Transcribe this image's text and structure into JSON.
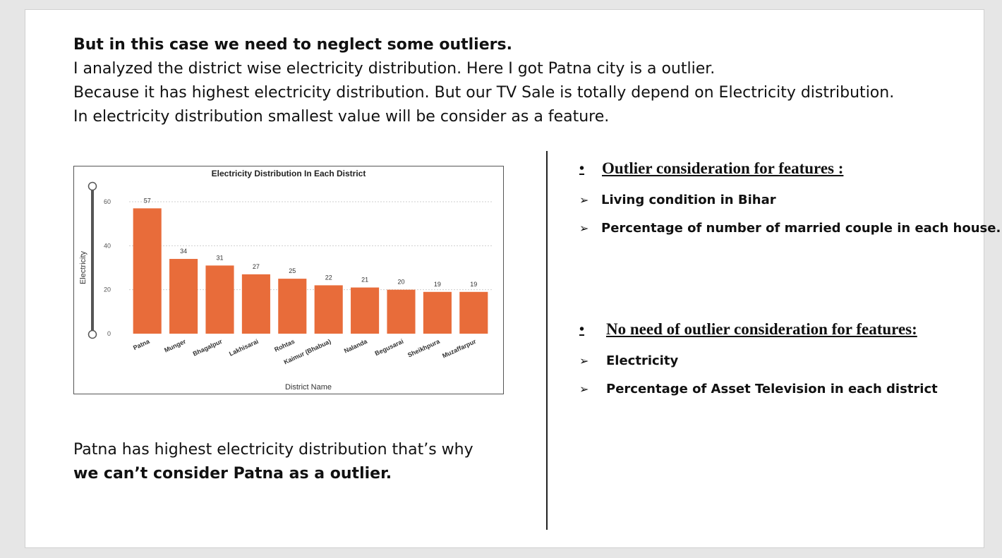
{
  "intro": {
    "heading": "But in this case we need to neglect some outliers.",
    "lines": [
      "I analyzed the district wise electricity distribution. Here I got Patna city is a outlier.",
      "Because it has highest electricity distribution. But our TV Sale is totally depend on Electricity distribution.",
      "In electricity distribution smallest value will be consider as a feature."
    ]
  },
  "chart_data": {
    "type": "bar",
    "title": "Electricity Distribution In Each District",
    "xlabel": "District Name",
    "ylabel": "Electricity",
    "categories": [
      "Patna",
      "Munger",
      "Bhagalpur",
      "Lakhisarai",
      "Rohtas",
      "Kaimur (Bhabua)",
      "Nalanda",
      "Begusarai",
      "Sheikhpura",
      "Muzaffarpur"
    ],
    "values": [
      57,
      34,
      31,
      27,
      25,
      22,
      21,
      20,
      19,
      19
    ],
    "yticks": [
      0,
      20,
      40,
      60
    ],
    "ylim": [
      0,
      60
    ],
    "bar_color": "#e86c3a",
    "grid": true,
    "data_labels": true
  },
  "bottom_note": {
    "line1": "Patna has highest electricity distribution that’s why",
    "line2": "we can’t consider Patna as a outlier."
  },
  "right_panel": {
    "section1": {
      "bullet": "•",
      "heading": "Outlier consideration for features :",
      "items": [
        "Living condition in Bihar",
        "Percentage of number of married couple in each house."
      ]
    },
    "section2": {
      "bullet": "•",
      "heading": "No need of outlier consideration for features:",
      "items": [
        "Electricity",
        "Percentage of Asset Television in each district"
      ]
    },
    "arrow_icon": "arrow-bullet-icon"
  }
}
